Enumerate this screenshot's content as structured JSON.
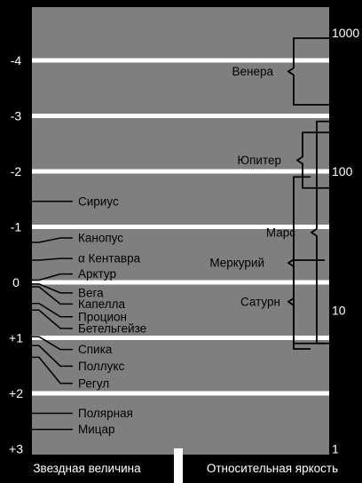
{
  "magnitude_ticks": [
    {
      "label": "-4",
      "value": -4
    },
    {
      "label": "-3",
      "value": -3
    },
    {
      "label": "-2",
      "value": -2
    },
    {
      "label": "-1",
      "value": -1
    },
    {
      "label": "0",
      "value": 0
    },
    {
      "label": "+1",
      "value": 1
    },
    {
      "label": "+2",
      "value": 2
    },
    {
      "label": "+3",
      "value": 3
    }
  ],
  "brightness_ticks": [
    {
      "label": "1000",
      "value": 1000
    },
    {
      "label": "100",
      "value": 100
    },
    {
      "label": "10",
      "value": 10
    },
    {
      "label": "1",
      "value": 1
    }
  ],
  "stars": [
    {
      "name": "Сириус",
      "magnitude": -1.46,
      "label_magnitude": -1.46
    },
    {
      "name": "Канопус",
      "magnitude": -0.72,
      "label_magnitude": -0.8
    },
    {
      "name": "α Кентавра",
      "magnitude": -0.4,
      "label_magnitude": -0.43
    },
    {
      "name": "Арктур",
      "magnitude": -0.04,
      "label_magnitude": -0.15
    },
    {
      "name": "Вега",
      "magnitude": 0.03,
      "label_magnitude": 0.19
    },
    {
      "name": "Капелла",
      "magnitude": 0.08,
      "label_magnitude": 0.39
    },
    {
      "name": "Процион",
      "magnitude": 0.38,
      "label_magnitude": 0.62
    },
    {
      "name": "Бетельгейзе",
      "magnitude": 0.5,
      "label_magnitude": 0.83
    },
    {
      "name": "Спика",
      "magnitude": 0.98,
      "label_magnitude": 1.21
    },
    {
      "name": "Поллукс",
      "magnitude": 1.14,
      "label_magnitude": 1.51
    },
    {
      "name": "Регул",
      "magnitude": 1.35,
      "label_magnitude": 1.82
    },
    {
      "name": "Полярная",
      "magnitude": 2.36,
      "label_magnitude": 2.36
    },
    {
      "name": "Мицар",
      "magnitude": 2.65,
      "label_magnitude": 2.65
    }
  ],
  "planets": [
    {
      "name": "Венера",
      "max_magnitude": -4.4,
      "min_magnitude": -3.2
    },
    {
      "name": "Юпитер",
      "max_magnitude": -2.7,
      "min_magnitude": -1.7
    },
    {
      "name": "Марс",
      "max_magnitude": -2.9,
      "min_magnitude": 1.1
    },
    {
      "name": "Меркурий",
      "max_magnitude": -1.9,
      "min_magnitude": 1.2
    },
    {
      "name": "Сатурн",
      "max_magnitude": -0.4,
      "min_magnitude": 1.1
    }
  ],
  "footer": {
    "left": "Звездная величина",
    "right": "Относительная яркость"
  },
  "colors": {
    "panel": "#7f7f7f",
    "background": "#000000",
    "ink": "#000000",
    "gridline": "#ffffff"
  }
}
